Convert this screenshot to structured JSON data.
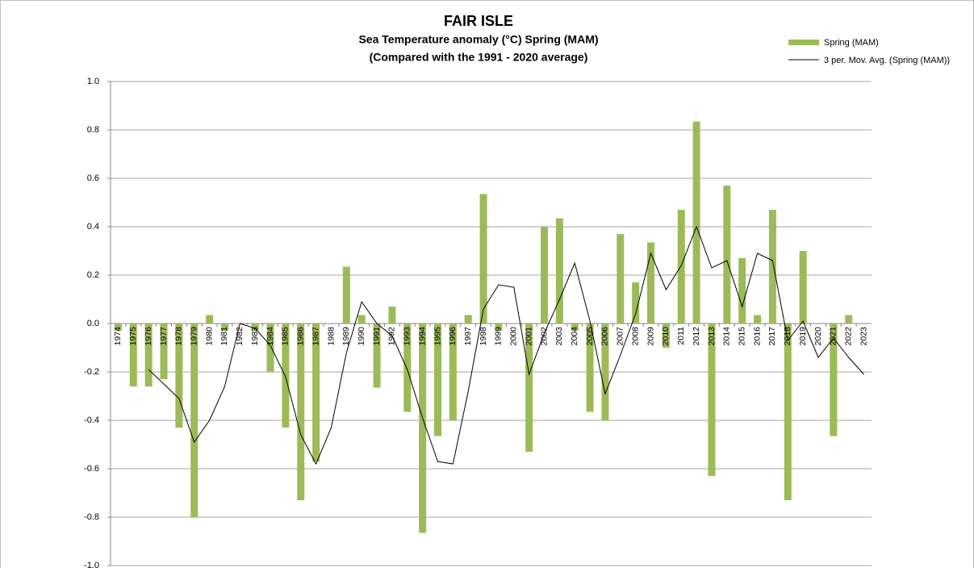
{
  "chart_data": {
    "type": "bar",
    "title": "FAIR ISLE",
    "subtitle": "Sea Temperature anomaly (°C) Spring (MAM)",
    "subtitle2": "(Compared with the 1991 - 2020 average)",
    "categories": [
      "1974",
      "1975",
      "1976",
      "1977",
      "1978",
      "1979",
      "1980",
      "1981",
      "1982",
      "1983",
      "1984",
      "1985",
      "1986",
      "1987",
      "1988",
      "1989",
      "1990",
      "1991",
      "1992",
      "1993",
      "1994",
      "1995",
      "1996",
      "1997",
      "1998",
      "1999",
      "2000",
      "2001",
      "2002",
      "2003",
      "2004",
      "2005",
      "2006",
      "2007",
      "2008",
      "2009",
      "2010",
      "2011",
      "2012",
      "2013",
      "2014",
      "2015",
      "2016",
      "2017",
      "2018",
      "2019",
      "2020",
      "2021",
      "2022",
      "2023"
    ],
    "series": [
      {
        "name": "Spring (MAM)",
        "color": "#9bbb59",
        "kind": "bar",
        "values": [
          -0.03,
          -0.26,
          -0.26,
          -0.23,
          -0.43,
          -0.8,
          0.035,
          -0.03,
          0,
          -0.03,
          -0.2,
          -0.43,
          -0.73,
          -0.57,
          0,
          0.235,
          0.035,
          -0.265,
          0.07,
          -0.365,
          -0.865,
          -0.465,
          -0.4,
          0.035,
          0.535,
          -0.03,
          0,
          -0.53,
          0.4,
          0.435,
          -0.03,
          -0.365,
          -0.4,
          0.37,
          0.17,
          0.335,
          -0.1,
          0.47,
          0.835,
          -0.63,
          0.57,
          0.27,
          0.035,
          0.47,
          -0.73,
          0.3,
          0,
          -0.465,
          0.035,
          null
        ]
      },
      {
        "name": "3 per. Mov. Avg. (Spring (MAM))",
        "color": "#000000",
        "kind": "line",
        "values": [
          null,
          null,
          -0.19,
          -0.25,
          -0.31,
          -0.49,
          -0.4,
          -0.26,
          0.0,
          -0.02,
          -0.09,
          -0.22,
          -0.46,
          -0.58,
          -0.43,
          -0.12,
          0.09,
          0.0,
          -0.05,
          -0.19,
          -0.39,
          -0.57,
          -0.58,
          -0.28,
          0.06,
          0.16,
          0.15,
          -0.21,
          -0.04,
          0.1,
          0.25,
          0.01,
          -0.29,
          -0.13,
          0.04,
          0.29,
          0.14,
          0.24,
          0.4,
          0.23,
          0.26,
          0.07,
          0.29,
          0.26,
          -0.07,
          0.01,
          -0.14,
          -0.06,
          -0.14,
          -0.21
        ]
      }
    ],
    "ylim": [
      -1.0,
      1.0
    ],
    "yticks": [
      {
        "value": -1.0,
        "label": "-1.0"
      },
      {
        "value": -0.8,
        "label": "-0.8"
      },
      {
        "value": -0.6,
        "label": "-0.6"
      },
      {
        "value": -0.4,
        "label": "-0.4"
      },
      {
        "value": -0.2,
        "label": "-0.2"
      },
      {
        "value": 0,
        "label": "0.0"
      },
      {
        "value": 0.2,
        "label": "0.2"
      },
      {
        "value": 0.4,
        "label": "0.4"
      },
      {
        "value": 0.6,
        "label": "0.6"
      },
      {
        "value": 0.8,
        "label": "0.8"
      },
      {
        "value": 1.0,
        "label": "1.0"
      }
    ],
    "grid": true,
    "legend": "top-right"
  }
}
